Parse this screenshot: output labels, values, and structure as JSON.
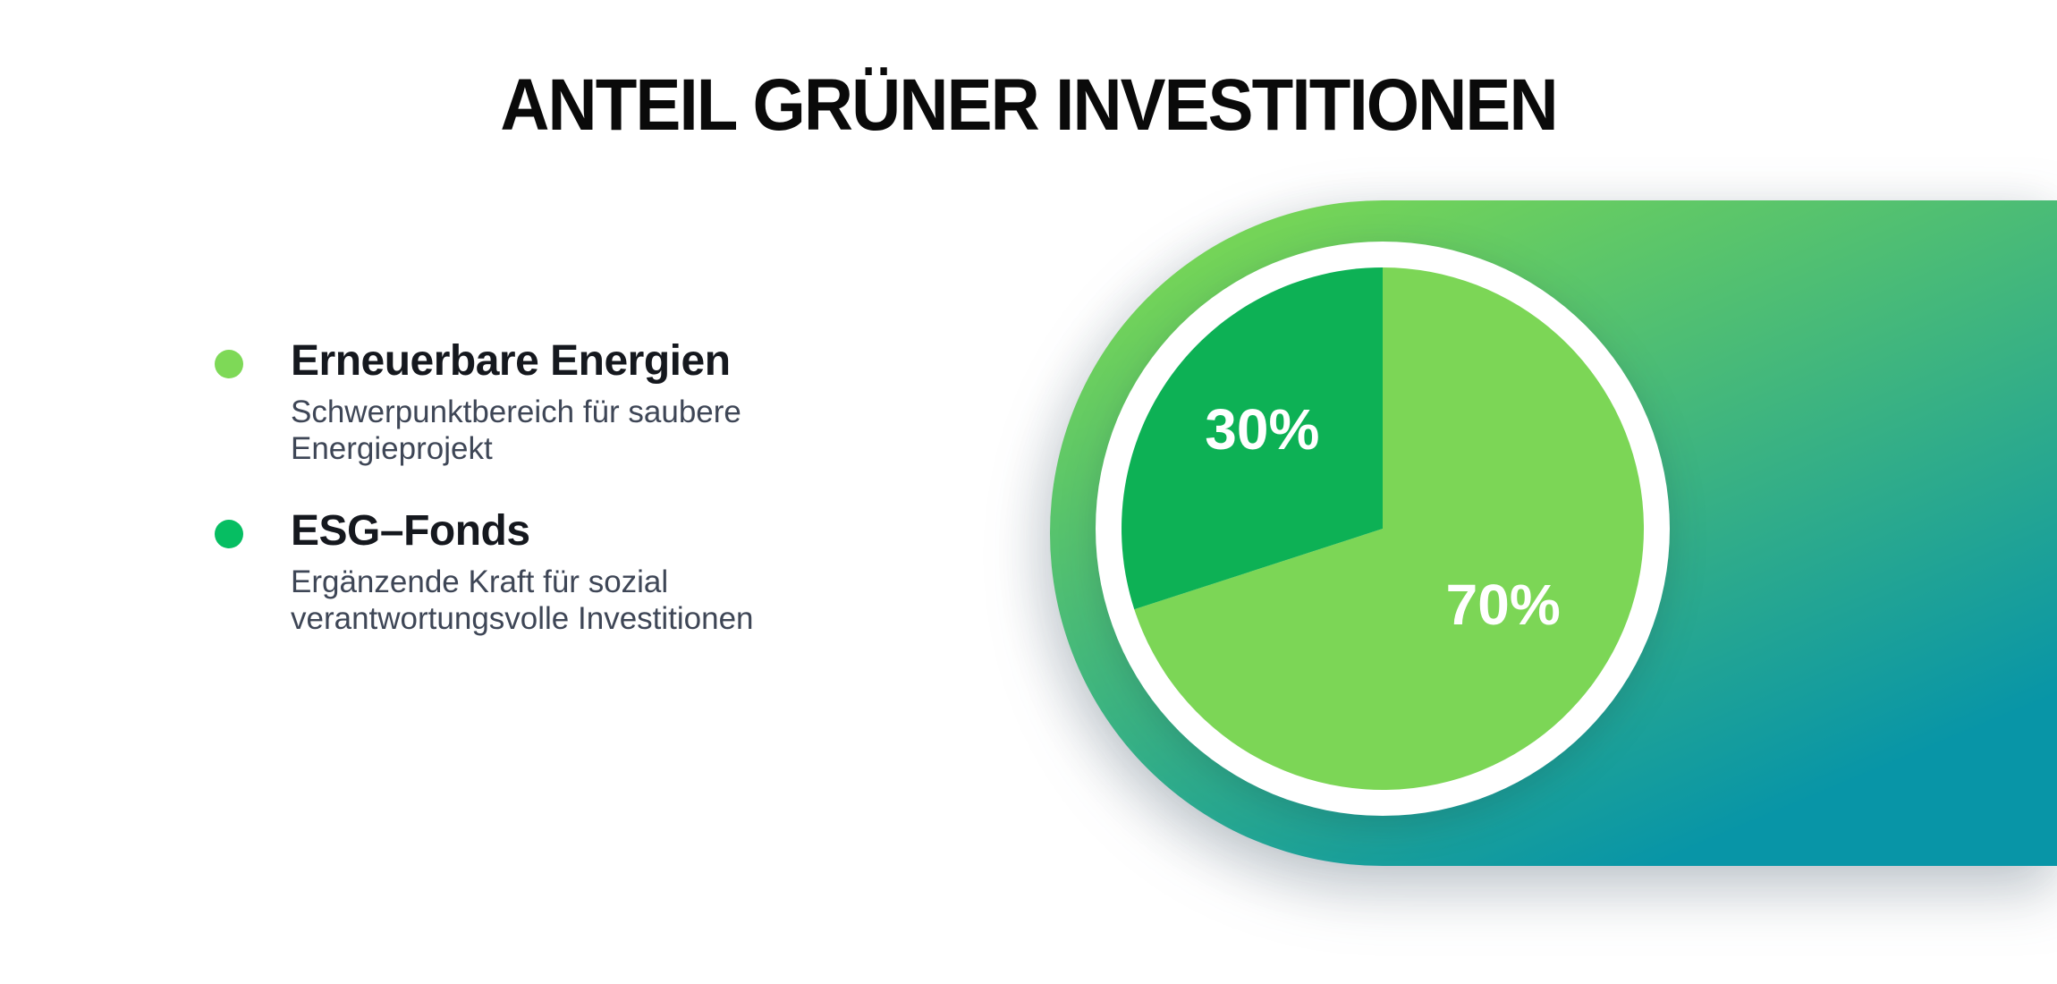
{
  "title": "ANTEIL GRÜNER INVESTITIONEN",
  "legend": {
    "items": [
      {
        "label": "Erneuerbare Energien",
        "description": "Schwerpunktbereich für saubere Energieprojekt",
        "color": "#7ED957"
      },
      {
        "label": "ESG–Fonds",
        "description": "Ergänzende Kraft für sozial verantwortungsvolle Investitionen",
        "color": "#06BE62"
      }
    ]
  },
  "chart_data": {
    "type": "pie",
    "title": "ANTEIL GRÜNER INVESTITIONEN",
    "categories": [
      "Erneuerbare Energien",
      "ESG-Fonds"
    ],
    "values": [
      70,
      30
    ],
    "slice_labels": [
      "70%",
      "30%"
    ],
    "slice_colors": [
      "#7CD656",
      "#0DB155"
    ],
    "start_angle_deg": 0,
    "direction": "clockwise",
    "legend_position": "left",
    "labels_inside": true
  },
  "colors": {
    "page_background": "#FFFFFF",
    "gradient_start": "#74D458",
    "gradient_end": "#0895A7",
    "plate": "#FFFFFF",
    "slice_label": "#FFFFFF",
    "title_color": "#0A0A0A",
    "legend_label_color": "#15181E",
    "legend_description_color": "#3E4656"
  }
}
